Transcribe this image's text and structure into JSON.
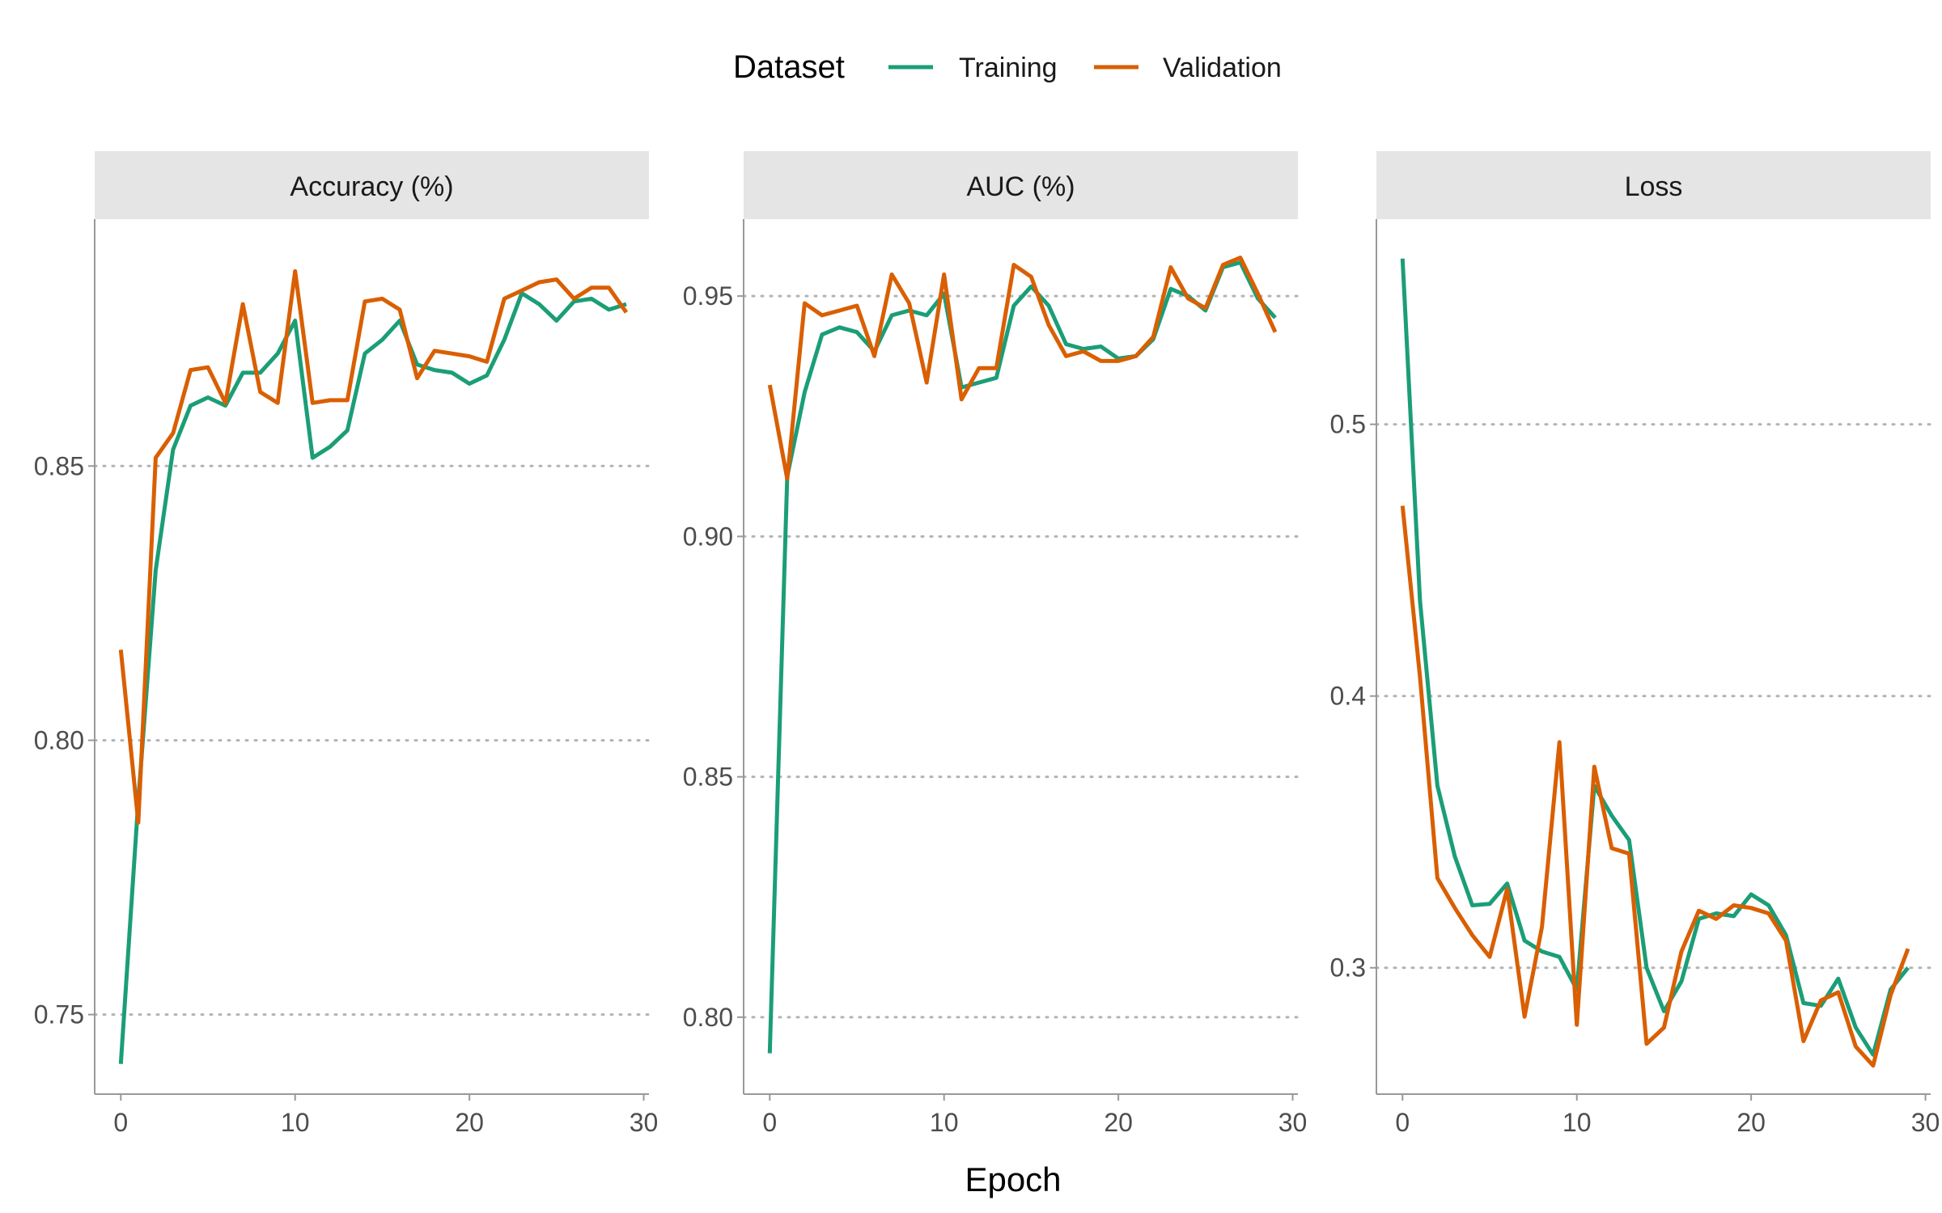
{
  "legend": {
    "title": "Dataset",
    "entries": [
      {
        "name": "Training",
        "color": "#1b9e77"
      },
      {
        "name": "Validation",
        "color": "#d95f02"
      }
    ],
    "placement": "top-center"
  },
  "xlabel": "Epoch",
  "chart_data": [
    {
      "type": "line",
      "title": "Accuracy (%)",
      "xlabel": "Epoch",
      "ylabel": "",
      "xlim": [
        -1.5,
        30.3
      ],
      "ylim": [
        0.7355,
        0.895
      ],
      "xticks": [
        0,
        10,
        20,
        30
      ],
      "yticks": [
        0.75,
        0.8,
        0.85
      ],
      "ytick_labels": [
        "0.75",
        "0.80",
        "0.85"
      ],
      "grid": "horizontal-dotted",
      "x": [
        0,
        1,
        2,
        3,
        4,
        5,
        6,
        7,
        8,
        9,
        10,
        11,
        12,
        13,
        14,
        15,
        16,
        17,
        18,
        19,
        20,
        21,
        22,
        23,
        24,
        25,
        26,
        27,
        28,
        29
      ],
      "series": [
        {
          "name": "Training",
          "color": "#1b9e77",
          "values": [
            0.741,
            0.789,
            0.831,
            0.853,
            0.861,
            0.8625,
            0.861,
            0.867,
            0.867,
            0.8705,
            0.8765,
            0.8515,
            0.8535,
            0.8565,
            0.8705,
            0.873,
            0.8765,
            0.8685,
            0.8675,
            0.867,
            0.865,
            0.8665,
            0.873,
            0.8815,
            0.8795,
            0.8765,
            0.88,
            0.8805,
            0.8785,
            0.8795
          ]
        },
        {
          "name": "Validation",
          "color": "#d95f02",
          "values": [
            0.8165,
            0.785,
            0.8515,
            0.856,
            0.8675,
            0.868,
            0.8615,
            0.8795,
            0.8635,
            0.8615,
            0.8855,
            0.8615,
            0.862,
            0.862,
            0.88,
            0.8805,
            0.8785,
            0.866,
            0.871,
            0.8705,
            0.87,
            0.869,
            0.8805,
            0.882,
            0.8835,
            0.884,
            0.8805,
            0.8825,
            0.8825,
            0.878
          ]
        }
      ]
    },
    {
      "type": "line",
      "title": "AUC (%)",
      "xlabel": "Epoch",
      "ylabel": "",
      "xlim": [
        -1.5,
        30.3
      ],
      "ylim": [
        0.784,
        0.966
      ],
      "xticks": [
        0,
        10,
        20,
        30
      ],
      "yticks": [
        0.8,
        0.85,
        0.9,
        0.95
      ],
      "ytick_labels": [
        "0.80",
        "0.85",
        "0.90",
        "0.95"
      ],
      "grid": "horizontal-dotted",
      "x": [
        0,
        1,
        2,
        3,
        4,
        5,
        6,
        7,
        8,
        9,
        10,
        11,
        12,
        13,
        14,
        15,
        16,
        17,
        18,
        19,
        20,
        21,
        22,
        23,
        24,
        25,
        26,
        27,
        28,
        29
      ],
      "series": [
        {
          "name": "Training",
          "color": "#1b9e77",
          "values": [
            0.7925,
            0.9125,
            0.93,
            0.942,
            0.9435,
            0.9425,
            0.9385,
            0.946,
            0.947,
            0.946,
            0.9505,
            0.931,
            0.932,
            0.933,
            0.948,
            0.952,
            0.948,
            0.94,
            0.939,
            0.9395,
            0.937,
            0.9375,
            0.941,
            0.9515,
            0.95,
            0.947,
            0.956,
            0.957,
            0.9495,
            0.9455
          ]
        },
        {
          "name": "Validation",
          "color": "#d95f02",
          "values": [
            0.9315,
            0.912,
            0.9485,
            0.946,
            0.947,
            0.948,
            0.9375,
            0.9545,
            0.9485,
            0.932,
            0.9545,
            0.9285,
            0.935,
            0.935,
            0.9565,
            0.954,
            0.944,
            0.9375,
            0.9385,
            0.9365,
            0.9365,
            0.9375,
            0.9415,
            0.956,
            0.9495,
            0.9475,
            0.9565,
            0.958,
            0.9505,
            0.9425
          ]
        }
      ]
    },
    {
      "type": "line",
      "title": "Loss",
      "xlabel": "Epoch",
      "ylabel": "",
      "xlim": [
        -1.5,
        30.3
      ],
      "ylim": [
        0.2535,
        0.5755
      ],
      "xticks": [
        0,
        10,
        20,
        30
      ],
      "yticks": [
        0.3,
        0.4,
        0.5
      ],
      "ytick_labels": [
        "0.3",
        "0.4",
        "0.5"
      ],
      "grid": "horizontal-dotted",
      "x": [
        0,
        1,
        2,
        3,
        4,
        5,
        6,
        7,
        8,
        9,
        10,
        11,
        12,
        13,
        14,
        15,
        16,
        17,
        18,
        19,
        20,
        21,
        22,
        23,
        24,
        25,
        26,
        27,
        28,
        29
      ],
      "series": [
        {
          "name": "Training",
          "color": "#1b9e77",
          "values": [
            0.561,
            0.435,
            0.367,
            0.341,
            0.323,
            0.3235,
            0.331,
            0.31,
            0.306,
            0.304,
            0.292,
            0.367,
            0.356,
            0.347,
            0.3,
            0.284,
            0.295,
            0.318,
            0.32,
            0.319,
            0.327,
            0.323,
            0.312,
            0.287,
            0.286,
            0.296,
            0.278,
            0.268,
            0.292,
            0.3
          ]
        },
        {
          "name": "Validation",
          "color": "#d95f02",
          "values": [
            0.47,
            0.407,
            0.333,
            0.322,
            0.312,
            0.304,
            0.329,
            0.282,
            0.315,
            0.383,
            0.279,
            0.374,
            0.344,
            0.342,
            0.272,
            0.278,
            0.306,
            0.321,
            0.318,
            0.323,
            0.322,
            0.32,
            0.31,
            0.273,
            0.288,
            0.291,
            0.271,
            0.264,
            0.29,
            0.307
          ]
        }
      ]
    }
  ]
}
